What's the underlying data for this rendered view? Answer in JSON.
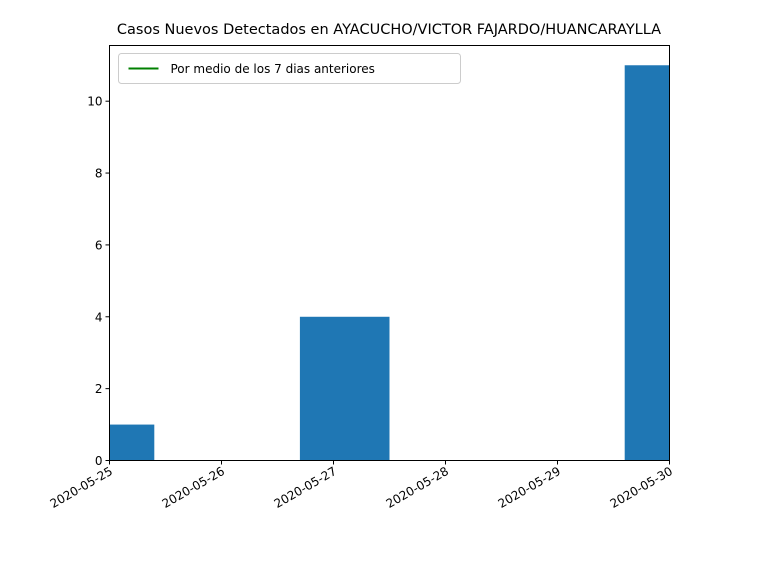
{
  "chart_data": {
    "type": "bar",
    "title": "Casos Nuevos Detectados en AYACUCHO/VICTOR FAJARDO/HUANCARAYLLA",
    "xlabel": "",
    "ylabel": "",
    "x_tick_labels": [
      "2020-05-25",
      "2020-05-26",
      "2020-05-27",
      "2020-05-28",
      "2020-05-29",
      "2020-05-30"
    ],
    "bars": [
      {
        "start": "2020-05-25",
        "end": "2020-05-25T09:36",
        "value": 1
      },
      {
        "start": "2020-05-26T16:48",
        "end": "2020-05-27T12:00",
        "value": 4
      },
      {
        "start": "2020-05-29T14:24",
        "end": "2020-05-30",
        "value": 11
      }
    ],
    "y_ticks": [
      0,
      2,
      4,
      6,
      8,
      10
    ],
    "xlim": [
      "2020-05-25",
      "2020-05-30"
    ],
    "ylim": [
      0,
      11.55
    ],
    "bar_color": "#1f77b4",
    "legend": {
      "placement": "upper-left",
      "entries": [
        {
          "label": "Por medio de los 7 dias anteriores",
          "color": "#008000"
        }
      ]
    },
    "grid": false
  }
}
